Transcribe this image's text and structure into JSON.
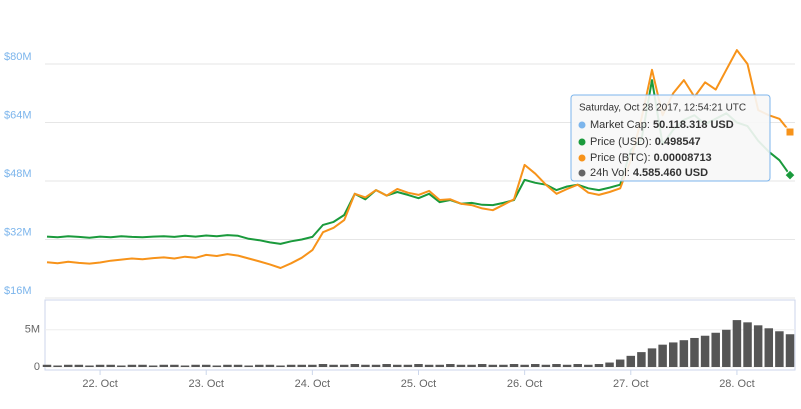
{
  "chart_data": [
    {
      "type": "line",
      "x": [
        21.5,
        21.6,
        21.7,
        21.8,
        21.9,
        22.0,
        22.1,
        22.2,
        22.3,
        22.4,
        22.5,
        22.6,
        22.7,
        22.8,
        22.9,
        23.0,
        23.1,
        23.2,
        23.3,
        23.4,
        23.5,
        23.6,
        23.7,
        23.8,
        23.9,
        24.0,
        24.1,
        24.2,
        24.3,
        24.4,
        24.5,
        24.6,
        24.7,
        24.8,
        24.9,
        25.0,
        25.1,
        25.2,
        25.3,
        25.4,
        25.5,
        25.6,
        25.7,
        25.8,
        25.9,
        26.0,
        26.1,
        26.2,
        26.3,
        26.4,
        26.5,
        26.6,
        26.7,
        26.8,
        26.9,
        27.0,
        27.1,
        27.2,
        27.3,
        27.4,
        27.5,
        27.6,
        27.7,
        27.8,
        27.9,
        28.0,
        28.1,
        28.2,
        28.3,
        28.4,
        28.5
      ],
      "series": [
        {
          "name": "Price (USD)",
          "color": "#1a9a3c",
          "values": [
            32.8,
            32.6,
            32.9,
            32.7,
            32.5,
            32.8,
            32.6,
            32.9,
            32.7,
            32.6,
            32.8,
            32.9,
            32.7,
            33.0,
            32.8,
            33.1,
            32.9,
            33.2,
            33.0,
            32.2,
            31.8,
            31.2,
            30.8,
            31.5,
            32.0,
            32.7,
            36.0,
            36.8,
            38.7,
            44.5,
            43.0,
            45.5,
            44.0,
            45.0,
            44.2,
            43.3,
            44.5,
            42.2,
            42.8,
            41.8,
            42.0,
            41.5,
            41.4,
            42.0,
            42.8,
            48.3,
            47.5,
            47.0,
            45.5,
            46.5,
            47.0,
            46.0,
            45.5,
            46.2,
            47.0,
            56.5,
            59.2,
            75.6,
            58.0,
            62.0,
            64.7,
            66.0,
            63.5,
            65.0,
            66.5,
            64.0,
            63.0,
            59.0,
            56.0,
            53.7,
            49.6
          ]
        },
        {
          "name": "Price (BTC)",
          "color": "#f7931a",
          "values": [
            25.8,
            25.5,
            25.9,
            25.6,
            25.4,
            25.7,
            26.2,
            26.5,
            26.8,
            26.6,
            26.9,
            27.1,
            26.8,
            27.3,
            27.0,
            27.8,
            27.5,
            28.0,
            27.6,
            26.8,
            26.0,
            25.2,
            24.2,
            25.5,
            27.0,
            29.1,
            34.0,
            35.2,
            37.3,
            44.5,
            43.5,
            45.5,
            44.0,
            45.8,
            44.8,
            44.2,
            45.3,
            42.8,
            43.0,
            41.8,
            41.4,
            40.5,
            40.0,
            41.5,
            43.0,
            52.4,
            50.0,
            47.0,
            44.5,
            45.8,
            47.0,
            44.8,
            44.2,
            45.0,
            46.0,
            53.7,
            65.0,
            78.4,
            66.0,
            72.0,
            75.6,
            71.0,
            75.0,
            73.0,
            78.4,
            83.8,
            80.0,
            67.4,
            66.0,
            65.0,
            61.4
          ]
        }
      ],
      "xlim": [
        21.5,
        28.5
      ],
      "xticks": [
        {
          "value": 22,
          "label": "22. Oct"
        },
        {
          "value": 23,
          "label": "23. Oct"
        },
        {
          "value": 24,
          "label": "24. Oct"
        },
        {
          "value": 25,
          "label": "25. Oct"
        },
        {
          "value": 26,
          "label": "26. Oct"
        },
        {
          "value": 27,
          "label": "27. Oct"
        },
        {
          "value": 28,
          "label": "28. Oct"
        }
      ],
      "ylim": [
        16,
        97.5
      ],
      "yticks": [
        {
          "value": 16,
          "label": "$16M"
        },
        {
          "value": 32,
          "label": "$32M"
        },
        {
          "value": 48,
          "label": "$48M"
        },
        {
          "value": 64,
          "label": "$64M"
        },
        {
          "value": 80,
          "label": "$80M"
        }
      ],
      "grid": true
    },
    {
      "type": "bar",
      "name": "24h Vol",
      "color": "#555555",
      "values": [
        0.3,
        0.2,
        0.3,
        0.3,
        0.2,
        0.3,
        0.3,
        0.2,
        0.3,
        0.3,
        0.2,
        0.3,
        0.3,
        0.2,
        0.3,
        0.3,
        0.2,
        0.3,
        0.3,
        0.2,
        0.3,
        0.3,
        0.2,
        0.3,
        0.3,
        0.3,
        0.4,
        0.3,
        0.3,
        0.4,
        0.3,
        0.3,
        0.4,
        0.3,
        0.3,
        0.4,
        0.3,
        0.3,
        0.4,
        0.3,
        0.3,
        0.4,
        0.3,
        0.3,
        0.4,
        0.3,
        0.4,
        0.3,
        0.4,
        0.3,
        0.4,
        0.3,
        0.4,
        0.6,
        1.0,
        1.5,
        2.0,
        2.5,
        3.0,
        3.3,
        3.6,
        3.9,
        4.2,
        4.6,
        5.0,
        6.3,
        6.0,
        5.6,
        5.2,
        4.8,
        4.4
      ],
      "ylim": [
        0,
        9
      ],
      "yticks": [
        0,
        {
          "value": 5,
          "label": "5M"
        }
      ]
    }
  ],
  "tooltip": {
    "title": "Saturday, Oct 28 2017, 12:54:21 UTC",
    "items": [
      {
        "label": "Market Cap:",
        "value": "50.118.318 USD"
      },
      {
        "label": "Price (USD):",
        "value": "0.498547"
      },
      {
        "label": "Price (BTC):",
        "value": "0.00008713"
      },
      {
        "label": "24h Vol:",
        "value": "4.585.460 USD"
      }
    ]
  }
}
